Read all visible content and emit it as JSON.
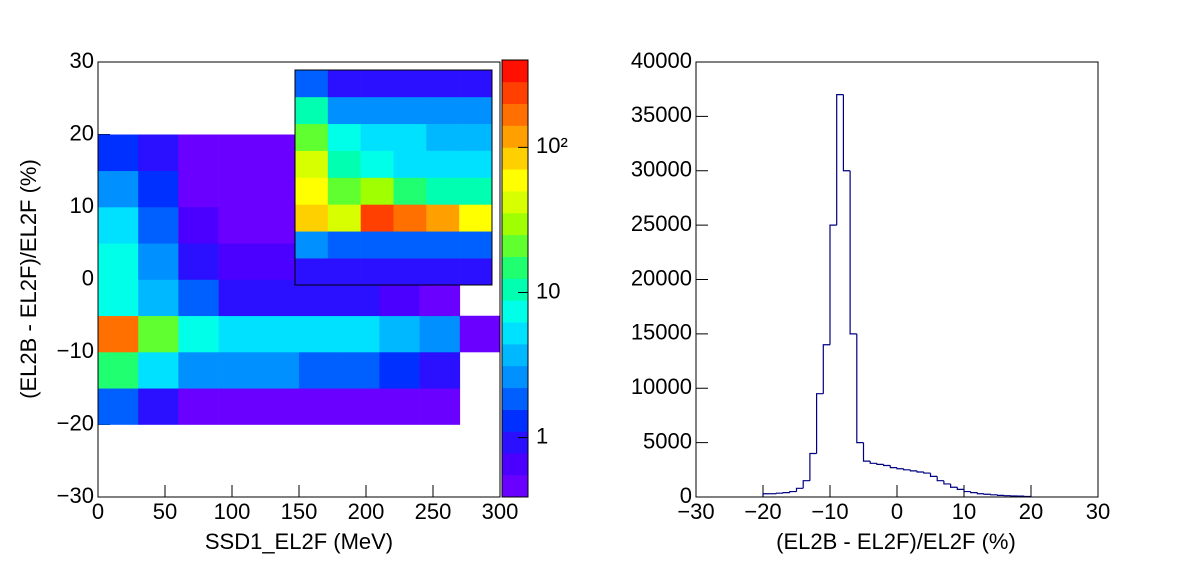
{
  "chart_data": [
    {
      "type": "heatmap",
      "xlabel": "SSD1_EL2F (MeV)",
      "ylabel": "(EL2B - EL2F)/EL2F (%)",
      "xlim": [
        0,
        300
      ],
      "ylim": [
        -30,
        30
      ],
      "xticks": [
        0,
        50,
        100,
        150,
        200,
        250,
        300
      ],
      "yticks": [
        {
          "value": -30,
          "label": "−30"
        },
        {
          "value": -20,
          "label": "−20"
        },
        {
          "value": -10,
          "label": "−10"
        },
        0,
        10,
        20,
        30
      ],
      "xbins": [
        0,
        30,
        60,
        90,
        120,
        150,
        180,
        210,
        240,
        270,
        300
      ],
      "ybins": [
        -20,
        -15,
        -10,
        -5,
        0,
        5,
        10,
        15,
        20
      ],
      "z": [
        [
          2,
          1,
          0.5,
          0.5,
          0.5,
          0.4,
          0.4,
          0.4,
          0.4,
          0
        ],
        [
          15,
          6,
          3,
          2.5,
          2.5,
          2,
          2,
          1.5,
          1,
          0
        ],
        [
          150,
          20,
          8,
          6,
          6,
          5,
          5,
          4,
          3,
          0.5
        ],
        [
          8,
          4,
          2,
          1,
          1,
          0.8,
          0.8,
          0.6,
          0.5,
          0
        ],
        [
          8,
          3,
          1,
          0.7,
          0.7,
          0.5,
          0.5,
          0.4,
          0,
          0
        ],
        [
          5,
          2,
          0.7,
          0.5,
          0.5,
          0.4,
          0.4,
          0,
          0,
          0
        ],
        [
          3,
          1.5,
          0.5,
          0.4,
          0.4,
          0.4,
          0.4,
          0,
          0,
          0
        ],
        [
          1.5,
          0.8,
          0.4,
          0.4,
          0.4,
          0,
          0,
          0,
          0,
          0
        ]
      ],
      "zlim": [
        0.39,
        400
      ],
      "zlog": true,
      "zticks": [
        1,
        10,
        {
          "value": 100,
          "label": "10²"
        }
      ],
      "palette": [
        "#6a00ff",
        "#4b00ff",
        "#2a10ff",
        "#0030ff",
        "#0060ff",
        "#0090ff",
        "#00b8ff",
        "#00e0ff",
        "#00ffe8",
        "#00ffb0",
        "#20ff70",
        "#60ff30",
        "#a0ff00",
        "#d8ff00",
        "#ffff00",
        "#ffd000",
        "#ffa000",
        "#ff7000",
        "#ff4000",
        "#ff1000"
      ],
      "inset": {
        "z": [
          [
            1,
            1,
            1,
            1,
            1,
            1
          ],
          [
            3,
            2,
            2,
            2,
            2,
            2
          ],
          [
            80,
            40,
            200,
            150,
            100,
            60
          ],
          [
            60,
            20,
            30,
            15,
            12,
            10
          ],
          [
            40,
            10,
            8,
            6,
            5,
            5
          ],
          [
            20,
            8,
            6,
            5,
            4,
            4
          ],
          [
            10,
            3,
            3,
            3,
            3,
            3
          ],
          [
            2,
            1,
            1,
            1,
            1,
            1
          ]
        ]
      }
    },
    {
      "type": "histogram",
      "xlabel": "(EL2B - EL2F)/EL2F (%)",
      "color": "#000080",
      "xlim": [
        -30,
        30
      ],
      "ylim": [
        0,
        40000
      ],
      "xticks": [
        {
          "value": -30,
          "label": "−30"
        },
        {
          "value": -20,
          "label": "−20"
        },
        {
          "value": -10,
          "label": "−10"
        },
        0,
        10,
        20,
        30
      ],
      "yticks": [
        0,
        5000,
        10000,
        15000,
        20000,
        25000,
        30000,
        35000,
        40000
      ],
      "bins": [
        -20,
        -19,
        -18,
        -17,
        -16,
        -15,
        -14,
        -13,
        -12,
        -11,
        -10,
        -9,
        -8,
        -7,
        -6,
        -5,
        -4,
        -3,
        -2,
        -1,
        0,
        1,
        2,
        3,
        4,
        5,
        6,
        7,
        8,
        9,
        10,
        11,
        12,
        13,
        14,
        15,
        16,
        17,
        18,
        19,
        20
      ],
      "counts": [
        300,
        300,
        350,
        400,
        500,
        800,
        1500,
        4000,
        9500,
        14000,
        25000,
        37000,
        30000,
        15000,
        5000,
        3300,
        3100,
        3000,
        2900,
        2700,
        2600,
        2500,
        2400,
        2300,
        2200,
        1900,
        1500,
        1200,
        900,
        700,
        500,
        400,
        300,
        250,
        200,
        150,
        120,
        100,
        80,
        50
      ]
    }
  ]
}
